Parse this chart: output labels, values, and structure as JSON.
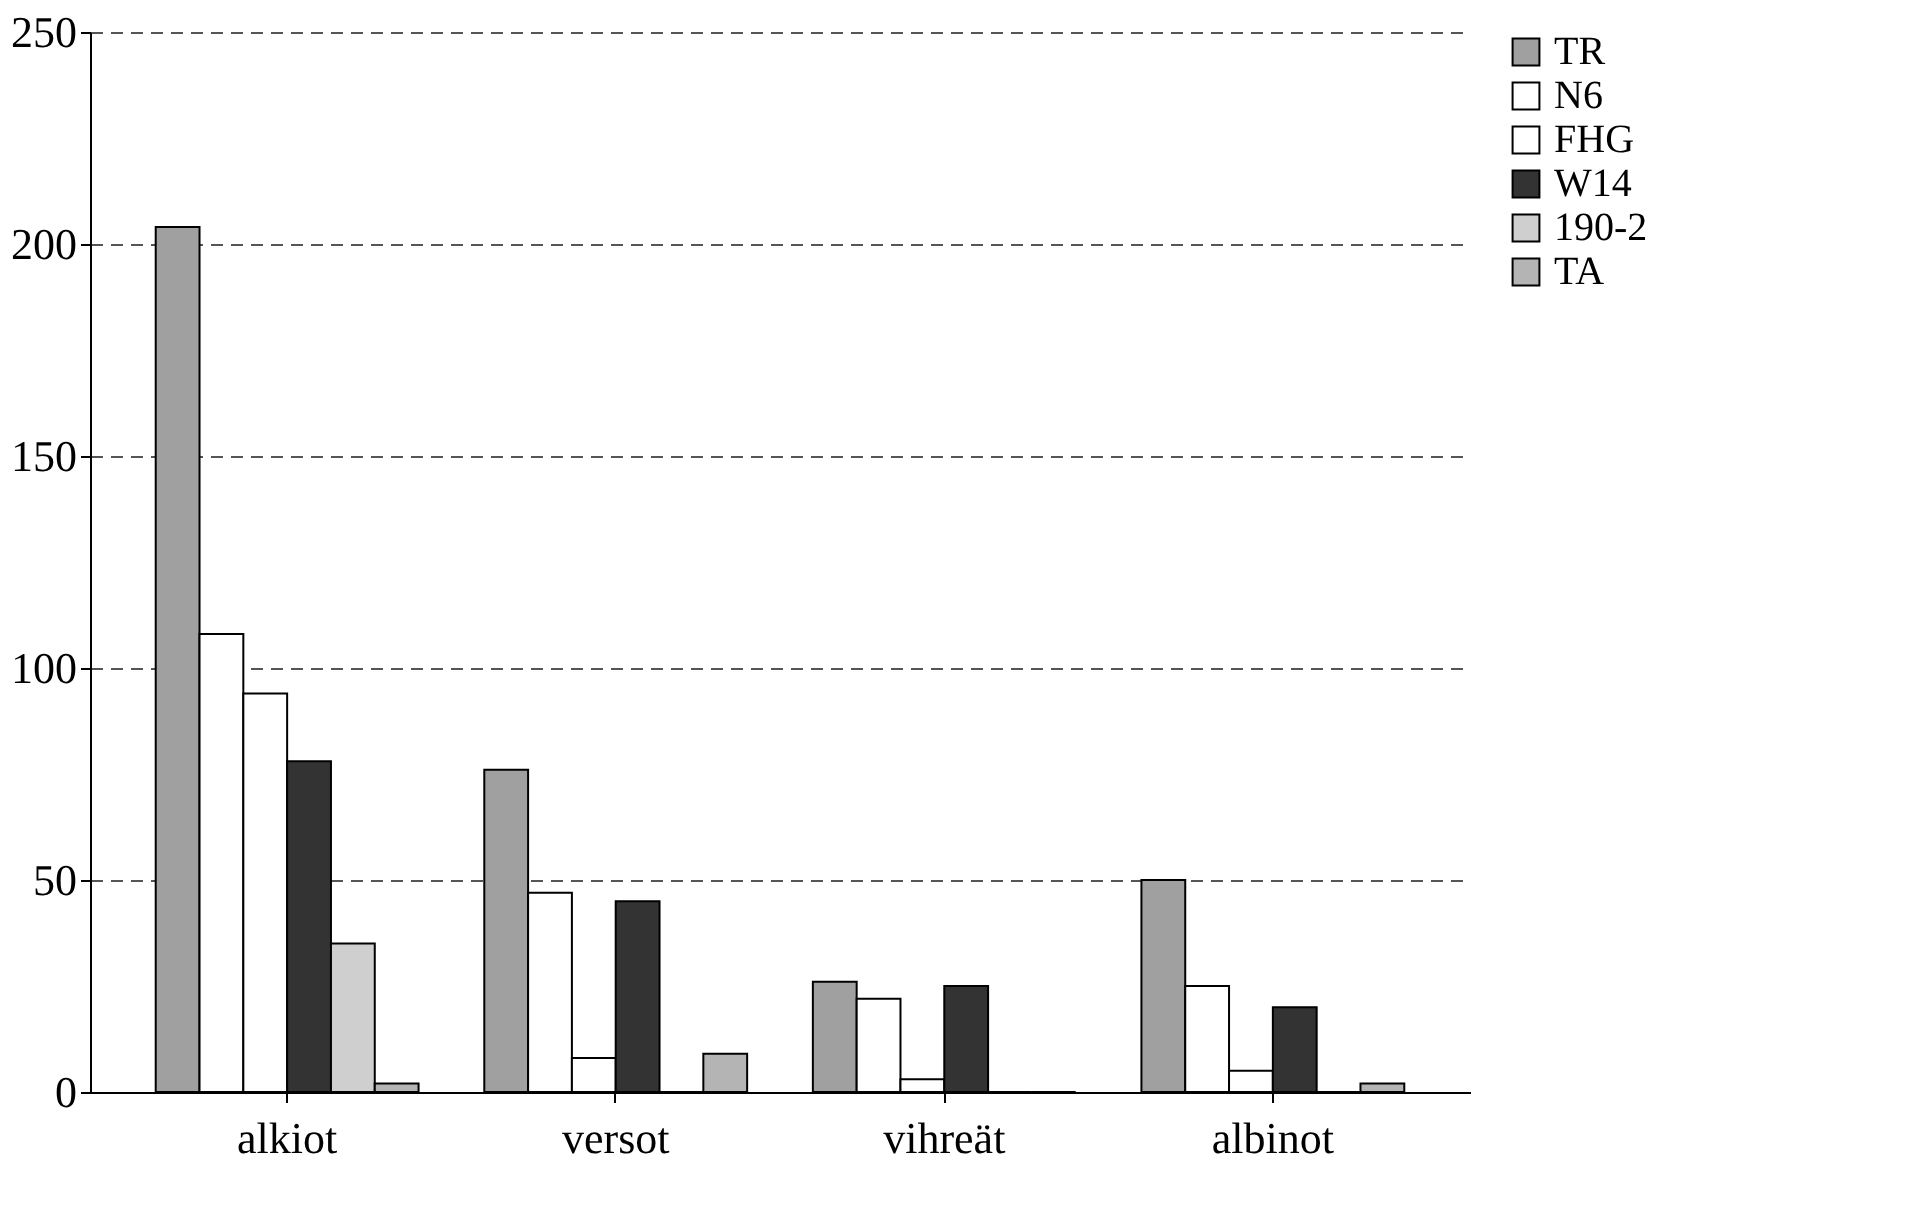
{
  "chart_data": {
    "type": "bar",
    "categories": [
      "alkiot",
      "versot",
      "vihreät",
      "albinot"
    ],
    "series": [
      {
        "name": "TR",
        "color": "#a0a0a0",
        "values": [
          204,
          76,
          26,
          50
        ]
      },
      {
        "name": "N6",
        "color": "#ffffff",
        "values": [
          108,
          47,
          22,
          25
        ]
      },
      {
        "name": "FHG",
        "color": "#ffffff",
        "values": [
          94,
          8,
          3,
          5
        ]
      },
      {
        "name": "W14",
        "color": "#333333",
        "values": [
          78,
          45,
          25,
          20
        ]
      },
      {
        "name": "190-2",
        "color": "#cfcfcf",
        "values": [
          35,
          0,
          0,
          0
        ]
      },
      {
        "name": "TA",
        "color": "#b4b4b4",
        "values": [
          2,
          9,
          0,
          2
        ]
      }
    ],
    "ylim": [
      0,
      250
    ],
    "yticks": [
      0,
      50,
      100,
      150,
      200,
      250
    ],
    "grid": "y",
    "line_style": "dashed",
    "legend": "right"
  }
}
